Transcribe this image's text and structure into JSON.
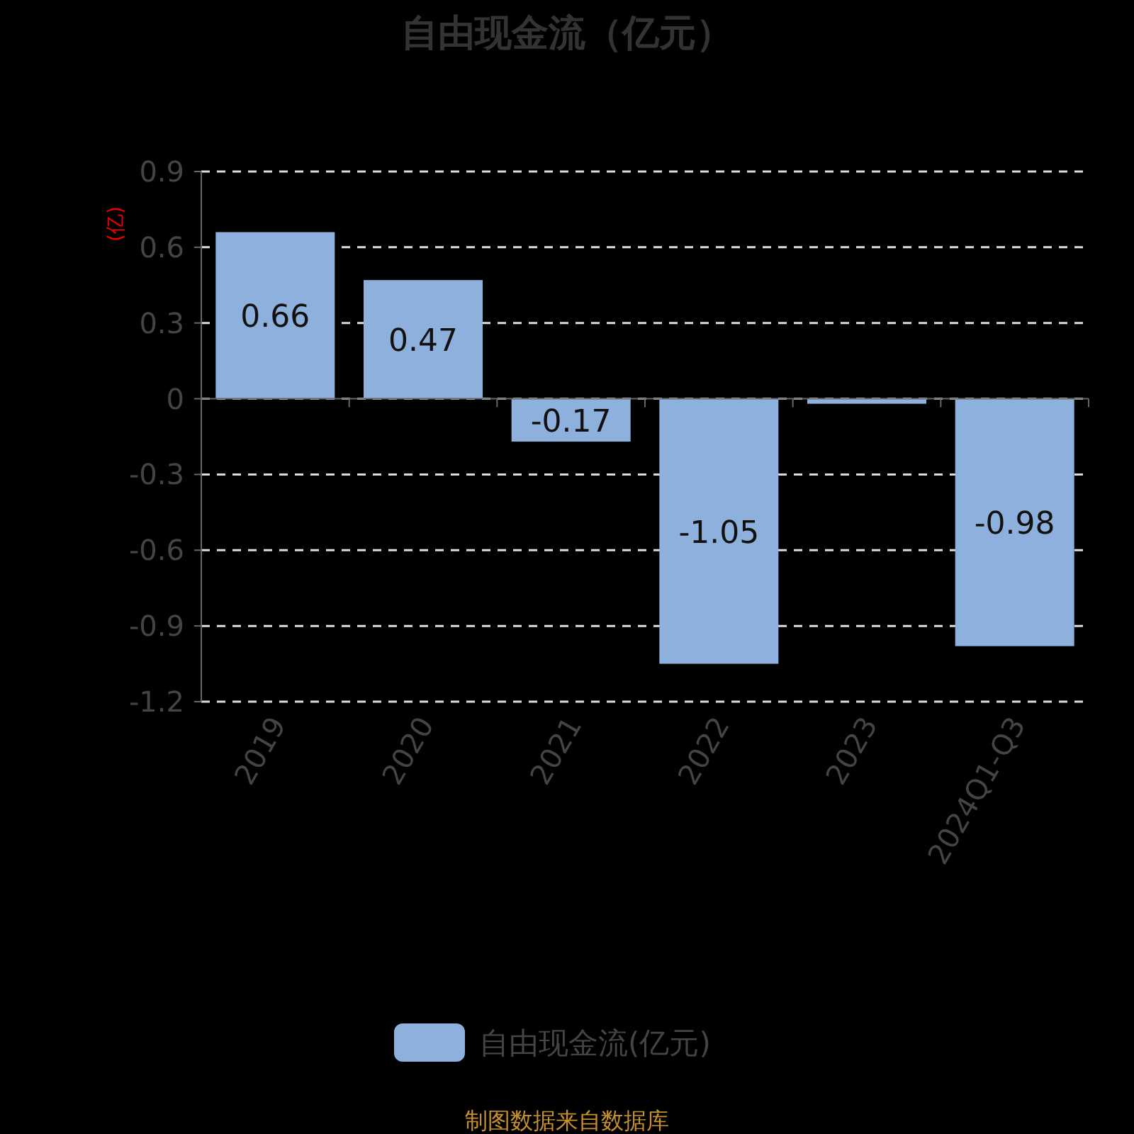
{
  "chart_data": {
    "type": "bar",
    "title": "自由现金流（亿元）",
    "ylabel": "(亿)",
    "categories": [
      "2019",
      "2020",
      "2021",
      "2022",
      "2023",
      "2024Q1-Q3"
    ],
    "series": [
      {
        "name": "自由现金流(亿元)",
        "color": "#8eb0dc",
        "values": [
          0.66,
          0.47,
          -0.17,
          -1.05,
          -0.02,
          -0.98
        ],
        "value_labels": [
          "0.66",
          "0.47",
          "-0.17",
          "-1.05",
          null,
          "-0.98"
        ]
      }
    ],
    "ylim": [
      -1.2,
      0.9
    ],
    "yticks": [
      -1.2,
      -0.9,
      -0.6,
      -0.3,
      0,
      0.3,
      0.6,
      0.9
    ],
    "grid": "y",
    "legend": "bottom",
    "annotations": [
      "制图数据来自数据库"
    ]
  }
}
